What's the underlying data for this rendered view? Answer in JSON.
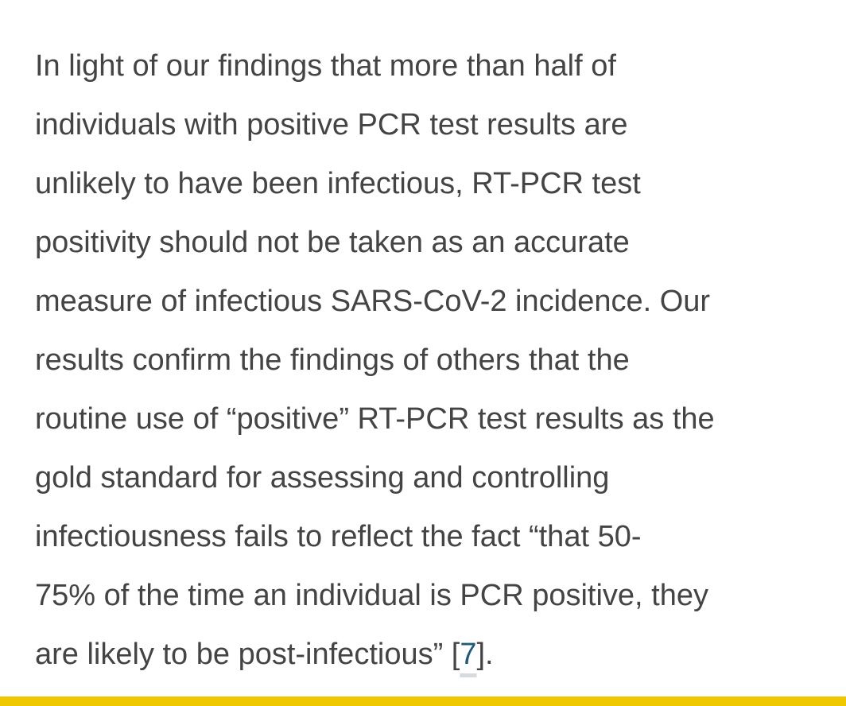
{
  "paragraph": {
    "lines": [
      "In light of our findings that more than half of",
      "individuals with positive PCR test results are",
      "unlikely to have been infectious, RT-PCR test",
      "positivity should not be taken as an accurate",
      "measure of infectious SARS-CoV-2 incidence. Our",
      "results confirm the findings of others that the",
      "routine use of “positive” RT-PCR test results as the",
      "gold standard for assessing and controlling",
      "infectiousness fails to reflect the fact “that 50-",
      "75% of the time an individual is PCR positive, they"
    ],
    "last_line_prefix": "are likely to be post-infectious” [",
    "reference_number": "7",
    "last_line_suffix": "]."
  },
  "colors": {
    "text": "#444444",
    "link": "#1f5b7a",
    "accent_bar": "#f0c800",
    "background": "#ffffff"
  }
}
